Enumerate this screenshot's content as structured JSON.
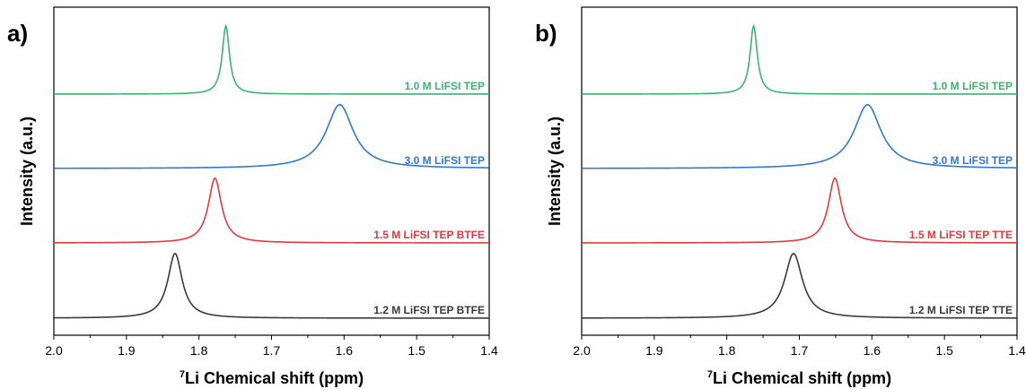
{
  "chart_data": [
    {
      "type": "line",
      "panel": "a)",
      "xlabel_sup": "7",
      "xlabel": "Li Chemical shift (ppm)",
      "ylabel": "Intensity (a.u.)",
      "xlim": [
        2.0,
        1.4
      ],
      "x_reversed": true,
      "xticks": [
        "2.0",
        "1.9",
        "1.8",
        "1.7",
        "1.6",
        "1.5",
        "1.4"
      ],
      "y_ticks_shown": false,
      "series": [
        {
          "name": "1.0 M LiFSI TEP",
          "color": "#3cb371",
          "peak_ppm": 1.763,
          "fwhm_ppm": 0.012,
          "intensity": 1.0
        },
        {
          "name": "3.0 M LiFSI TEP",
          "color": "#2f78d0",
          "peak_ppm": 1.606,
          "fwhm_ppm": 0.045,
          "intensity": 0.95
        },
        {
          "name": "1.5 M LiFSI TEP BTFE",
          "color": "#e8383d",
          "peak_ppm": 1.778,
          "fwhm_ppm": 0.022,
          "intensity": 0.95
        },
        {
          "name": "1.2 M LiFSI TEP BTFE",
          "color": "#3a3a3a",
          "peak_ppm": 1.833,
          "fwhm_ppm": 0.024,
          "intensity": 0.95
        }
      ]
    },
    {
      "type": "line",
      "panel": "b)",
      "xlabel_sup": "7",
      "xlabel": "Li Chemical shift (ppm)",
      "ylabel": "Intensity (a.u.)",
      "xlim": [
        2.0,
        1.4
      ],
      "x_reversed": true,
      "xticks": [
        "2.0",
        "1.9",
        "1.8",
        "1.7",
        "1.6",
        "1.5",
        "1.4"
      ],
      "y_ticks_shown": false,
      "series": [
        {
          "name": "1.0 M LiFSI TEP",
          "color": "#3cb371",
          "peak_ppm": 1.763,
          "fwhm_ppm": 0.012,
          "intensity": 1.0
        },
        {
          "name": "3.0 M LiFSI TEP",
          "color": "#2f78d0",
          "peak_ppm": 1.606,
          "fwhm_ppm": 0.045,
          "intensity": 0.95
        },
        {
          "name": "1.5 M LiFSI TEP  TTE",
          "color": "#e8383d",
          "peak_ppm": 1.651,
          "fwhm_ppm": 0.022,
          "intensity": 0.95
        },
        {
          "name": "1.2 M LiFSI TEP  TTE",
          "color": "#3a3a3a",
          "peak_ppm": 1.708,
          "fwhm_ppm": 0.03,
          "intensity": 0.95
        }
      ]
    }
  ]
}
